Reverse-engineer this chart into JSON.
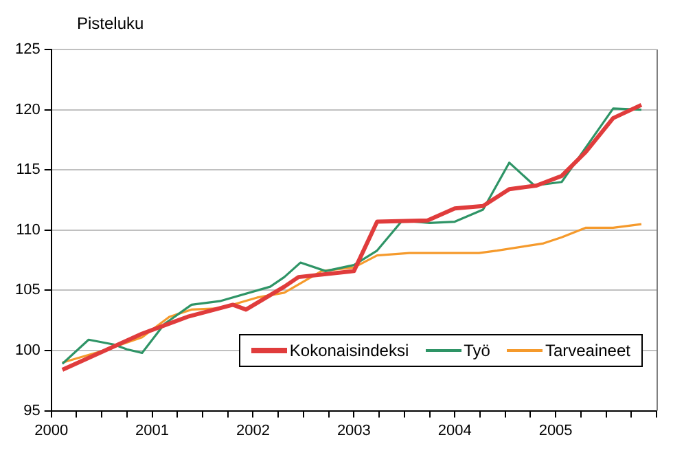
{
  "chart_data": {
    "type": "line",
    "ylabel": "Pisteluku",
    "xlim": [
      2000,
      2006
    ],
    "ylim": [
      95,
      125
    ],
    "yticks": [
      95,
      100,
      105,
      110,
      115,
      120,
      125
    ],
    "xticks": [
      {
        "value": 2000,
        "label": "2000"
      },
      {
        "value": 2000.25,
        "label": null
      },
      {
        "value": 2000.5,
        "label": null
      },
      {
        "value": 2000.75,
        "label": null
      },
      {
        "value": 2001,
        "label": "2001"
      },
      {
        "value": 2001.25,
        "label": null
      },
      {
        "value": 2001.5,
        "label": null
      },
      {
        "value": 2001.75,
        "label": null
      },
      {
        "value": 2002,
        "label": "2002"
      },
      {
        "value": 2002.25,
        "label": null
      },
      {
        "value": 2002.5,
        "label": null
      },
      {
        "value": 2002.75,
        "label": null
      },
      {
        "value": 2003,
        "label": "2003"
      },
      {
        "value": 2003.25,
        "label": null
      },
      {
        "value": 2003.5,
        "label": null
      },
      {
        "value": 2003.75,
        "label": null
      },
      {
        "value": 2004,
        "label": "2004"
      },
      {
        "value": 2004.25,
        "label": null
      },
      {
        "value": 2004.5,
        "label": null
      },
      {
        "value": 2004.75,
        "label": null
      },
      {
        "value": 2005,
        "label": "2005"
      },
      {
        "value": 2005.25,
        "label": null
      },
      {
        "value": 2005.5,
        "label": null
      },
      {
        "value": 2005.75,
        "label": null
      },
      {
        "value": 2006,
        "label": null
      }
    ],
    "grid": "y",
    "legend": "bottom right",
    "marker": "none",
    "line_style": "solid",
    "series": [
      {
        "name": "Kokonaisindeksi",
        "color": "#e03c3c",
        "x": [
          2000.11,
          2000.9,
          2001.35,
          2001.8,
          2001.93,
          2002.31,
          2002.45,
          2003.0,
          2003.23,
          2003.73,
          2004.0,
          2004.28,
          2004.54,
          2004.81,
          2005.06,
          2005.3,
          2005.57,
          2005.85
        ],
        "values": [
          98.4,
          101.4,
          102.8,
          103.8,
          103.4,
          105.3,
          106.1,
          106.6,
          110.7,
          110.8,
          111.8,
          112.0,
          113.4,
          113.7,
          114.5,
          116.5,
          119.3,
          120.4
        ]
      },
      {
        "name": "Työ",
        "color": "#2e9466",
        "x": [
          2000.11,
          2000.37,
          2000.62,
          2000.75,
          2000.9,
          2001.12,
          2001.39,
          2001.67,
          2002.17,
          2002.31,
          2002.47,
          2002.72,
          2003.0,
          2003.23,
          2003.48,
          2003.75,
          2004.0,
          2004.28,
          2004.54,
          2004.79,
          2005.06,
          2005.57,
          2005.85
        ],
        "values": [
          98.9,
          100.9,
          100.5,
          100.1,
          99.8,
          102.2,
          103.8,
          104.1,
          105.3,
          106.1,
          107.3,
          106.6,
          107.1,
          108.3,
          110.8,
          110.6,
          110.7,
          111.7,
          115.6,
          113.7,
          114.0,
          120.1,
          120.0
        ]
      },
      {
        "name": "Tarveaineet",
        "color": "#f59a2c",
        "x": [
          2000.11,
          2000.52,
          2000.9,
          2001.17,
          2001.39,
          2001.67,
          2002.04,
          2002.31,
          2002.68,
          2003.0,
          2003.23,
          2003.55,
          2004.24,
          2004.42,
          2004.88,
          2005.06,
          2005.3,
          2005.57,
          2005.85
        ],
        "values": [
          99.0,
          100.0,
          101.1,
          102.8,
          103.4,
          103.5,
          104.4,
          104.8,
          106.6,
          106.9,
          107.9,
          108.1,
          108.1,
          108.3,
          108.9,
          109.4,
          110.2,
          110.2,
          110.5
        ]
      }
    ]
  }
}
